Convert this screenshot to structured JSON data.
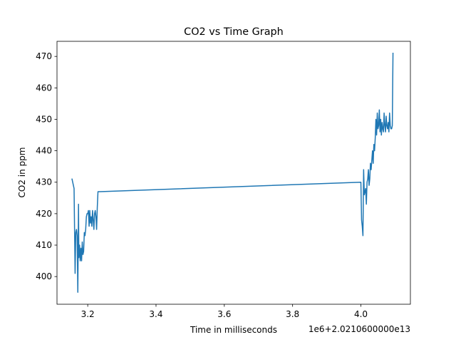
{
  "chart_data": {
    "type": "line",
    "title": "CO2 vs Time Graph",
    "xlabel": "Time in milliseconds",
    "ylabel": "CO2 in ppm",
    "x_offset_label": "1e6+2.0210600000e13",
    "xlim": [
      3.11,
      4.145
    ],
    "ylim": [
      391.2,
      474.8
    ],
    "x_ticks": [
      3.2,
      3.4,
      3.6,
      3.8,
      4.0
    ],
    "x_tick_labels": [
      "3.2",
      "3.4",
      "3.6",
      "3.8",
      "4.0"
    ],
    "y_ticks": [
      400,
      410,
      420,
      430,
      440,
      450,
      460,
      470
    ],
    "y_tick_labels": [
      "400",
      "410",
      "420",
      "430",
      "440",
      "450",
      "460",
      "470"
    ],
    "grid": false,
    "series": [
      {
        "color": "#1f77b4",
        "x": [
          3.154,
          3.16,
          3.163,
          3.165,
          3.167,
          3.169,
          3.171,
          3.173,
          3.174,
          3.176,
          3.178,
          3.18,
          3.182,
          3.184,
          3.186,
          3.188,
          3.19,
          3.192,
          3.194,
          3.196,
          3.198,
          3.2,
          3.202,
          3.204,
          3.206,
          3.208,
          3.21,
          3.212,
          3.214,
          3.216,
          3.218,
          3.22,
          3.222,
          3.224,
          3.226,
          3.228,
          3.23,
          3.232,
          3.234,
          3.236,
          4.0,
          4.002,
          4.004,
          4.006,
          4.008,
          4.01,
          4.012,
          4.014,
          4.016,
          4.018,
          4.02,
          4.022,
          4.024,
          4.026,
          4.028,
          4.03,
          4.032,
          4.034,
          4.036,
          4.038,
          4.04,
          4.042,
          4.044,
          4.046,
          4.048,
          4.05,
          4.052,
          4.054,
          4.056,
          4.058,
          4.06,
          4.062,
          4.064,
          4.066,
          4.068,
          4.07,
          4.072,
          4.074,
          4.076,
          4.078,
          4.08,
          4.082,
          4.084,
          4.086,
          4.088,
          4.09,
          4.092,
          4.094
        ],
        "y": [
          431,
          428,
          401,
          414,
          415,
          413,
          395,
          423,
          406,
          410,
          405,
          409,
          405,
          411,
          407,
          408,
          414,
          413,
          415,
          419,
          420,
          420,
          421,
          416,
          421,
          417,
          419,
          416,
          421,
          418,
          415,
          420,
          421,
          419,
          415,
          422,
          427,
          427,
          427,
          427,
          430,
          418,
          416,
          413,
          434,
          426,
          427,
          428,
          423,
          430,
          431,
          434,
          429,
          431,
          436,
          434,
          437,
          440,
          436,
          442,
          440,
          444,
          450,
          445,
          452,
          447,
          448,
          453,
          446,
          450,
          445,
          449,
          447,
          446,
          452,
          448,
          446,
          451,
          448,
          447,
          449,
          446,
          452,
          448,
          447,
          447,
          448,
          471
        ]
      }
    ]
  }
}
